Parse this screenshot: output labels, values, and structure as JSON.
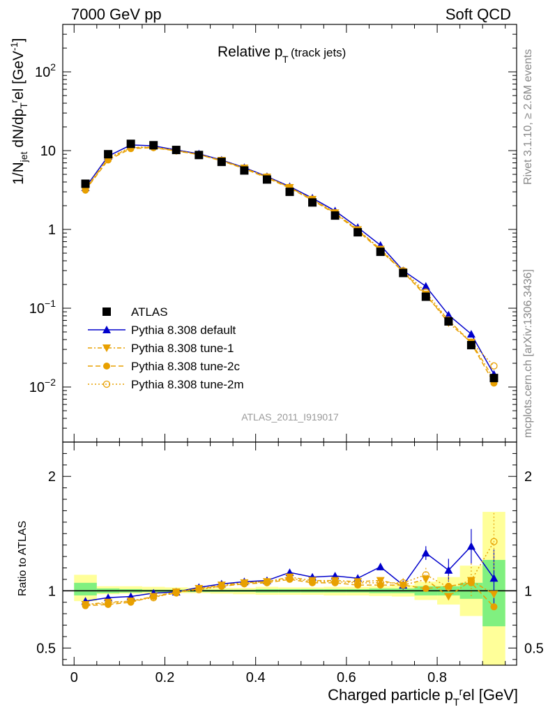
{
  "header": {
    "left": "7000 GeV pp",
    "right": "Soft QCD",
    "title": "Relative p",
    "title_sub": "T",
    "title_note": "(track jets)",
    "ref_label": "ATLAS_2011_I919017"
  },
  "side": {
    "rivet": "Rivet 3.1.10, ≥ 2.6M events",
    "mcplots": "mcplots.cern.ch [arXiv:1306.3436]"
  },
  "main_ylabel": "1/N_jet dN/dp_T^rel [GeV^-1]",
  "ratio_ylabel": "Ratio to ATLAS",
  "xlabel": "Charged particle p_T^rel [GeV]",
  "colors": {
    "data": "#000000",
    "default": "#0000cc",
    "tune": "#e8a000",
    "band_inner": "#80f080",
    "band_outer": "#ffff99",
    "side_text": "#888888"
  },
  "chart_data": [
    {
      "type": "line",
      "yscale": "log",
      "xlim": [
        -0.025,
        0.975
      ],
      "ylim": [
        0.002,
        400
      ],
      "x_ticks": [
        "0",
        "0.2",
        "0.4",
        "0.6",
        "0.8"
      ],
      "y_ticks": [
        "10^-2",
        "10^-1",
        "1",
        "10",
        "10^2"
      ],
      "legend": "middle-left",
      "x": [
        0.025,
        0.075,
        0.125,
        0.175,
        0.225,
        0.275,
        0.325,
        0.375,
        0.425,
        0.475,
        0.525,
        0.575,
        0.625,
        0.675,
        0.725,
        0.775,
        0.825,
        0.875,
        0.925
      ],
      "series": [
        {
          "name": "ATLAS",
          "marker": "square",
          "values": [
            3.8,
            9.0,
            12.2,
            11.7,
            10.2,
            8.8,
            7.2,
            5.6,
            4.3,
            3.0,
            2.2,
            1.5,
            0.92,
            0.52,
            0.28,
            0.14,
            0.068,
            0.034,
            0.013
          ]
        },
        {
          "name": "Pythia 8.308 default",
          "marker": "triangle-up",
          "values": [
            3.4,
            8.5,
            11.8,
            11.5,
            10.2,
            9.1,
            7.6,
            6.1,
            4.7,
            3.5,
            2.5,
            1.72,
            1.06,
            0.63,
            0.3,
            0.19,
            0.082,
            0.047,
            0.0145
          ]
        },
        {
          "name": "Pythia 8.308 tune-1",
          "marker": "triangle-down",
          "values": [
            3.2,
            7.9,
            10.9,
            11.0,
            10.0,
            8.9,
            7.5,
            6.0,
            4.6,
            3.4,
            2.4,
            1.62,
            0.99,
            0.56,
            0.29,
            0.15,
            0.065,
            0.037,
            0.0126
          ]
        },
        {
          "name": "Pythia 8.308 tune-2c",
          "marker": "circle",
          "values": [
            3.15,
            7.6,
            10.6,
            10.9,
            9.9,
            8.9,
            7.4,
            5.9,
            4.5,
            3.35,
            2.35,
            1.58,
            0.96,
            0.54,
            0.29,
            0.143,
            0.071,
            0.036,
            0.0112
          ]
        },
        {
          "name": "Pythia 8.308 tune-2m",
          "marker": "circle-open",
          "values": [
            3.3,
            8.1,
            11.0,
            11.1,
            10.1,
            8.95,
            7.5,
            6.0,
            4.65,
            3.42,
            2.42,
            1.63,
            0.99,
            0.56,
            0.3,
            0.16,
            0.07,
            0.037,
            0.0185
          ]
        }
      ]
    },
    {
      "type": "line",
      "xlim": [
        -0.025,
        0.975
      ],
      "ylim": [
        0.35,
        2.3
      ],
      "x_ticks": [
        "0",
        "0.2",
        "0.4",
        "0.6",
        "0.8"
      ],
      "y_ticks": [
        "0.5",
        "1",
        "2"
      ],
      "x": [
        0.025,
        0.075,
        0.125,
        0.175,
        0.225,
        0.275,
        0.325,
        0.375,
        0.425,
        0.475,
        0.525,
        0.575,
        0.625,
        0.675,
        0.725,
        0.775,
        0.825,
        0.875,
        0.925
      ],
      "bin_edges": [
        0.0,
        0.05,
        0.1,
        0.15,
        0.2,
        0.25,
        0.3,
        0.35,
        0.4,
        0.45,
        0.5,
        0.55,
        0.6,
        0.65,
        0.7,
        0.75,
        0.8,
        0.85,
        0.9,
        0.95
      ],
      "band_inner": [
        [
          0.96,
          1.07
        ],
        [
          0.98,
          1.02
        ],
        [
          0.985,
          1.015
        ],
        [
          0.99,
          1.01
        ],
        [
          0.99,
          1.01
        ],
        [
          0.99,
          1.01
        ],
        [
          0.99,
          1.01
        ],
        [
          0.99,
          1.01
        ],
        [
          0.985,
          1.015
        ],
        [
          0.985,
          1.015
        ],
        [
          0.985,
          1.015
        ],
        [
          0.985,
          1.015
        ],
        [
          0.985,
          1.015
        ],
        [
          0.98,
          1.02
        ],
        [
          0.98,
          1.02
        ],
        [
          0.96,
          1.04
        ],
        [
          0.96,
          1.04
        ],
        [
          0.93,
          1.07
        ],
        [
          0.69,
          1.27
        ]
      ],
      "band_outer": [
        [
          0.91,
          1.14
        ],
        [
          0.97,
          1.04
        ],
        [
          0.975,
          1.04
        ],
        [
          0.975,
          1.035
        ],
        [
          0.98,
          1.03
        ],
        [
          0.98,
          1.025
        ],
        [
          0.975,
          1.025
        ],
        [
          0.97,
          1.025
        ],
        [
          0.965,
          1.035
        ],
        [
          0.965,
          1.03
        ],
        [
          0.965,
          1.03
        ],
        [
          0.96,
          1.035
        ],
        [
          0.96,
          1.035
        ],
        [
          0.955,
          1.04
        ],
        [
          0.95,
          1.05
        ],
        [
          0.92,
          1.08
        ],
        [
          0.88,
          1.12
        ],
        [
          0.78,
          1.22
        ],
        [
          0.34,
          1.69
        ]
      ],
      "series": [
        {
          "name": "Pythia 8.308 default",
          "marker": "triangle-up",
          "values": [
            0.91,
            0.94,
            0.95,
            0.98,
            0.99,
            1.03,
            1.06,
            1.08,
            1.09,
            1.16,
            1.12,
            1.13,
            1.11,
            1.21,
            1.05,
            1.33,
            1.18,
            1.39,
            1.11
          ]
        },
        {
          "name": "Pythia 8.308 tune-1",
          "marker": "triangle-down",
          "values": [
            0.88,
            0.9,
            0.91,
            0.95,
            0.99,
            1.02,
            1.05,
            1.07,
            1.08,
            1.12,
            1.09,
            1.09,
            1.08,
            1.09,
            1.05,
            1.1,
            0.95,
            1.09,
            0.97
          ]
        },
        {
          "name": "Pythia 8.308 tune-2c",
          "marker": "circle",
          "values": [
            0.87,
            0.88,
            0.9,
            0.95,
            0.98,
            1.02,
            1.04,
            1.06,
            1.07,
            1.1,
            1.07,
            1.07,
            1.05,
            1.05,
            1.05,
            1.02,
            1.04,
            1.07,
            0.86
          ]
        },
        {
          "name": "Pythia 8.308 tune-2m",
          "marker": "circle-open",
          "values": [
            0.88,
            0.89,
            0.91,
            0.94,
            0.99,
            1.01,
            1.04,
            1.07,
            1.08,
            1.11,
            1.08,
            1.08,
            1.07,
            1.07,
            1.07,
            1.14,
            1.03,
            1.09,
            1.43
          ]
        }
      ],
      "errors": {
        "Pythia 8.308 default": [
          0.01,
          0.01,
          0.01,
          0.01,
          0.01,
          0.01,
          0.01,
          0.01,
          0.01,
          0.01,
          0.01,
          0.015,
          0.02,
          0.03,
          0.04,
          0.06,
          0.1,
          0.15,
          0.25
        ],
        "Pythia 8.308 tune-2m": [
          0.01,
          0.01,
          0.01,
          0.01,
          0.01,
          0.01,
          0.01,
          0.01,
          0.01,
          0.01,
          0.01,
          0.015,
          0.02,
          0.03,
          0.04,
          0.06,
          0.1,
          0.15,
          0.25
        ]
      }
    }
  ]
}
